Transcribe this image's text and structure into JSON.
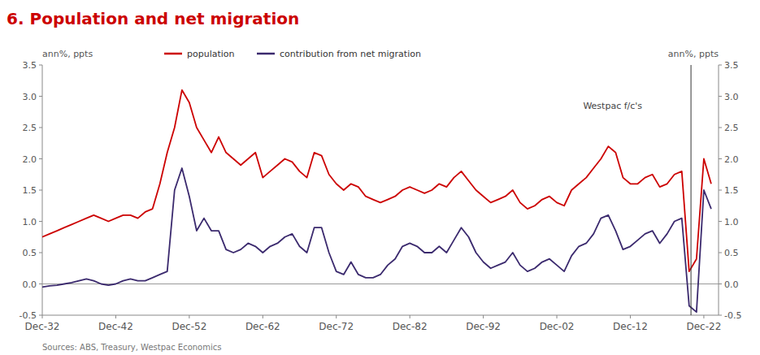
{
  "chart_data": {
    "type": "line",
    "title": "6. Population and net migration",
    "title_color": "#cc0000",
    "ylabel": "ann%, ppts",
    "y2label": "ann%, ppts",
    "x": [
      1932,
      1933,
      1934,
      1935,
      1936,
      1937,
      1938,
      1939,
      1940,
      1941,
      1942,
      1943,
      1944,
      1945,
      1946,
      1947,
      1948,
      1949,
      1950,
      1951,
      1952,
      1953,
      1954,
      1955,
      1956,
      1957,
      1958,
      1959,
      1960,
      1961,
      1962,
      1963,
      1964,
      1965,
      1966,
      1967,
      1968,
      1969,
      1970,
      1971,
      1972,
      1973,
      1974,
      1975,
      1976,
      1977,
      1978,
      1979,
      1980,
      1981,
      1982,
      1983,
      1984,
      1985,
      1986,
      1987,
      1988,
      1989,
      1990,
      1991,
      1992,
      1993,
      1994,
      1995,
      1996,
      1997,
      1998,
      1999,
      2000,
      2001,
      2002,
      2003,
      2004,
      2005,
      2006,
      2007,
      2008,
      2009,
      2010,
      2011,
      2012,
      2013,
      2014,
      2015,
      2016,
      2017,
      2018,
      2019,
      2020,
      2021,
      2022,
      2023
    ],
    "series": [
      {
        "name": "population",
        "color": "#cc0000",
        "values": [
          0.75,
          0.8,
          0.85,
          0.9,
          0.95,
          1.0,
          1.05,
          1.1,
          1.05,
          1.0,
          1.05,
          1.1,
          1.1,
          1.05,
          1.15,
          1.2,
          1.6,
          2.1,
          2.5,
          3.1,
          2.9,
          2.5,
          2.3,
          2.1,
          2.35,
          2.1,
          2.0,
          1.9,
          2.0,
          2.1,
          1.7,
          1.8,
          1.9,
          2.0,
          1.95,
          1.8,
          1.7,
          2.1,
          2.05,
          1.75,
          1.6,
          1.5,
          1.6,
          1.55,
          1.4,
          1.35,
          1.3,
          1.35,
          1.4,
          1.5,
          1.55,
          1.5,
          1.45,
          1.5,
          1.6,
          1.55,
          1.7,
          1.8,
          1.65,
          1.5,
          1.4,
          1.3,
          1.35,
          1.4,
          1.5,
          1.3,
          1.2,
          1.25,
          1.35,
          1.4,
          1.3,
          1.25,
          1.5,
          1.6,
          1.7,
          1.85,
          2.0,
          2.2,
          2.1,
          1.7,
          1.6,
          1.6,
          1.7,
          1.75,
          1.55,
          1.6,
          1.75,
          1.8,
          0.2,
          0.4,
          2.0,
          1.6
        ]
      },
      {
        "name": "contribution from net migration",
        "color": "#3b2a6e",
        "values": [
          -0.05,
          -0.03,
          -0.02,
          0.0,
          0.02,
          0.05,
          0.08,
          0.05,
          0.0,
          -0.02,
          0.0,
          0.05,
          0.08,
          0.05,
          0.05,
          0.1,
          0.15,
          0.2,
          1.5,
          1.85,
          1.4,
          0.85,
          1.05,
          0.85,
          0.85,
          0.55,
          0.5,
          0.55,
          0.65,
          0.6,
          0.5,
          0.6,
          0.65,
          0.75,
          0.8,
          0.6,
          0.5,
          0.9,
          0.9,
          0.5,
          0.2,
          0.15,
          0.35,
          0.15,
          0.1,
          0.1,
          0.15,
          0.3,
          0.4,
          0.6,
          0.65,
          0.6,
          0.5,
          0.5,
          0.6,
          0.5,
          0.7,
          0.9,
          0.75,
          0.5,
          0.35,
          0.25,
          0.3,
          0.35,
          0.5,
          0.3,
          0.2,
          0.25,
          0.35,
          0.4,
          0.3,
          0.2,
          0.45,
          0.6,
          0.65,
          0.8,
          1.05,
          1.1,
          0.85,
          0.55,
          0.6,
          0.7,
          0.8,
          0.85,
          0.65,
          0.8,
          1.0,
          1.05,
          -0.35,
          -0.45,
          1.5,
          1.2
        ]
      }
    ],
    "xlim": [
      1932,
      2024
    ],
    "xticks": [
      {
        "value": 1932,
        "label": "Dec-32"
      },
      {
        "value": 1942,
        "label": "Dec-42"
      },
      {
        "value": 1952,
        "label": "Dec-52"
      },
      {
        "value": 1962,
        "label": "Dec-62"
      },
      {
        "value": 1972,
        "label": "Dec-72"
      },
      {
        "value": 1982,
        "label": "Dec-82"
      },
      {
        "value": 1992,
        "label": "Dec-92"
      },
      {
        "value": 2002,
        "label": "Dec-02"
      },
      {
        "value": 2012,
        "label": "Dec-12"
      },
      {
        "value": 2022,
        "label": "Dec-22"
      }
    ],
    "ylim": [
      -0.5,
      3.5
    ],
    "yticks": [
      -0.5,
      {
        "value": 0.0,
        "label": "0.0"
      },
      0.5,
      {
        "value": 1.0,
        "label": "1.0"
      },
      1.5,
      {
        "value": 2.0,
        "label": "2.0"
      },
      2.5,
      {
        "value": 3.0,
        "label": "3.0"
      },
      3.5
    ],
    "y2lim": [
      -0.5,
      3.5
    ],
    "y2ticks": [
      -0.5,
      {
        "value": 0.0,
        "label": "0.0"
      },
      0.5,
      {
        "value": 1.0,
        "label": "1.0"
      },
      1.5,
      {
        "value": 2.0,
        "label": "2.0"
      },
      2.5,
      {
        "value": 3.0,
        "label": "3.0"
      },
      3.5
    ],
    "vline_x": 2020.25,
    "annotations": [
      "Westpac f/c's",
      "Sources: ABS, Treasury, Westpac Economics"
    ],
    "legend": "upper left",
    "grid": false
  }
}
